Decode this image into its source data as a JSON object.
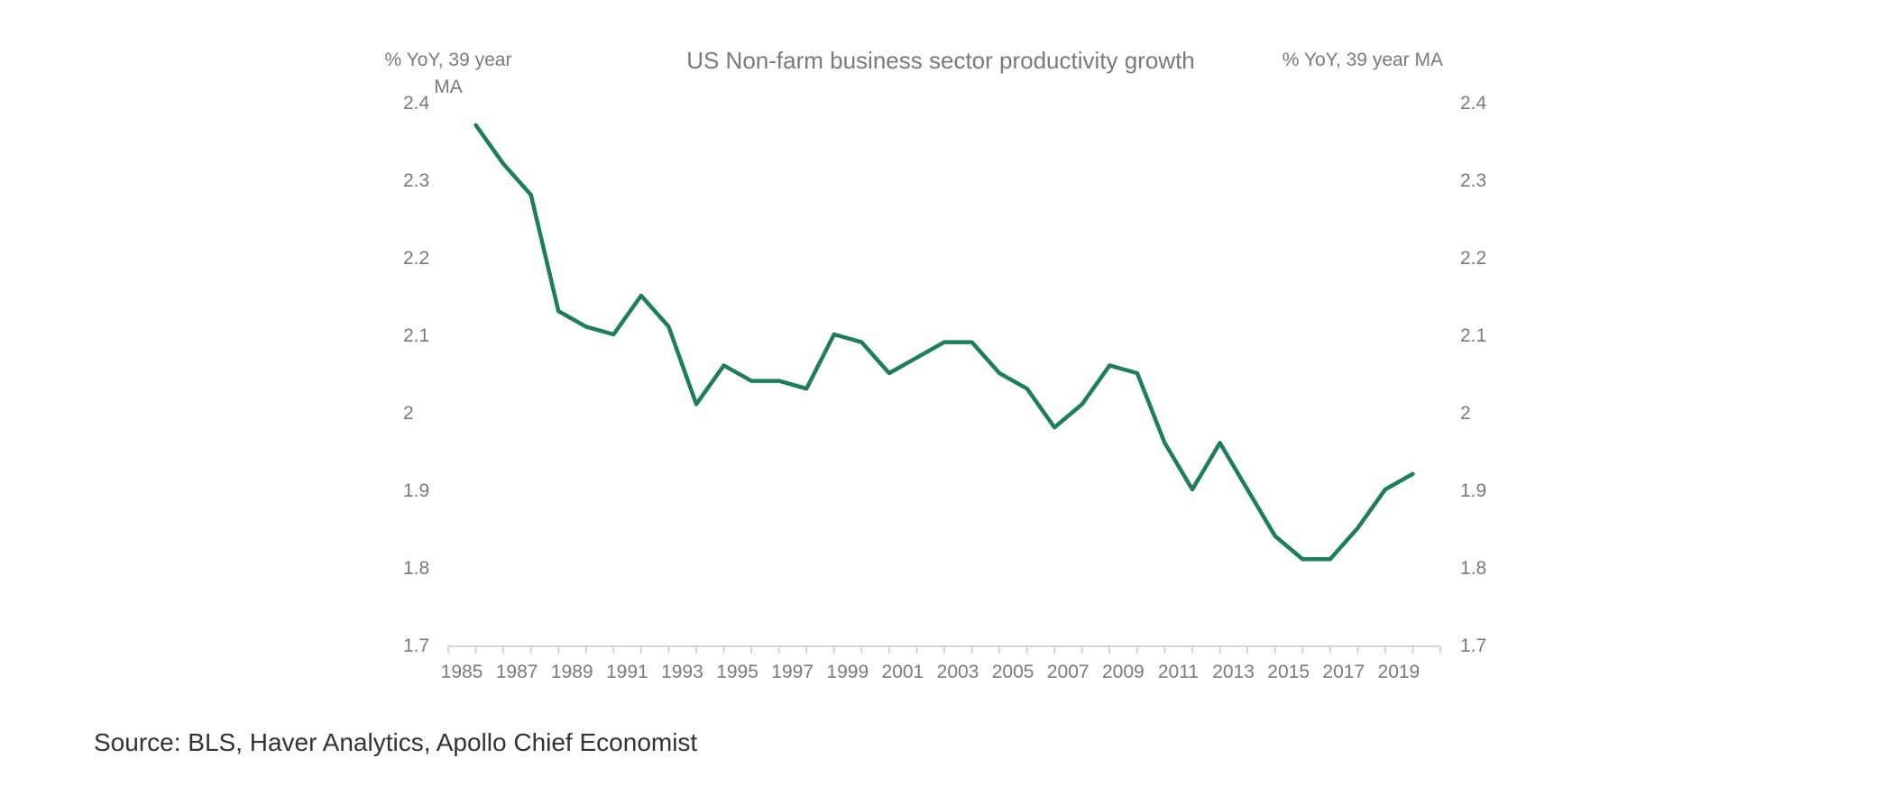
{
  "chart_data": {
    "type": "line",
    "title": "US Non-farm business sector productivity growth",
    "ylabel": "% YoY, 39 year MA",
    "ylabel_right": "% YoY, 39 year MA",
    "xlabel": "",
    "ylim": [
      1.7,
      2.4
    ],
    "yticks": [
      "2.4",
      "2.3",
      "2.2",
      "2.1",
      "2",
      "1.9",
      "1.8",
      "1.7"
    ],
    "xlim": [
      1985,
      2021
    ],
    "xticks": [
      "1985",
      "1987",
      "1989",
      "1991",
      "1993",
      "1995",
      "1997",
      "1999",
      "2001",
      "2003",
      "2005",
      "2007",
      "2009",
      "2011",
      "2013",
      "2015",
      "2017",
      "2019"
    ],
    "grid": false,
    "legend": "none",
    "series": [
      {
        "color": "#1e7d5e",
        "x": [
          1986,
          1987,
          1988,
          1989,
          1990,
          1991,
          1992,
          1993,
          1994,
          1995,
          1996,
          1997,
          1998,
          1999,
          2000,
          2001,
          2002,
          2003,
          2004,
          2005,
          2006,
          2007,
          2008,
          2009,
          2010,
          2011,
          2012,
          2013,
          2014,
          2015,
          2016,
          2017,
          2018,
          2019,
          2020
        ],
        "values": [
          2.37,
          2.32,
          2.28,
          2.13,
          2.11,
          2.1,
          2.15,
          2.11,
          2.01,
          2.06,
          2.04,
          2.04,
          2.03,
          2.1,
          2.09,
          2.05,
          2.07,
          2.09,
          2.09,
          2.05,
          2.03,
          1.98,
          2.01,
          2.06,
          2.05,
          1.96,
          1.9,
          1.96,
          1.9,
          1.84,
          1.81,
          1.81,
          1.85,
          1.9,
          1.92
        ]
      }
    ]
  },
  "source": "Source: BLS, Haver Analytics, Apollo Chief Economist"
}
